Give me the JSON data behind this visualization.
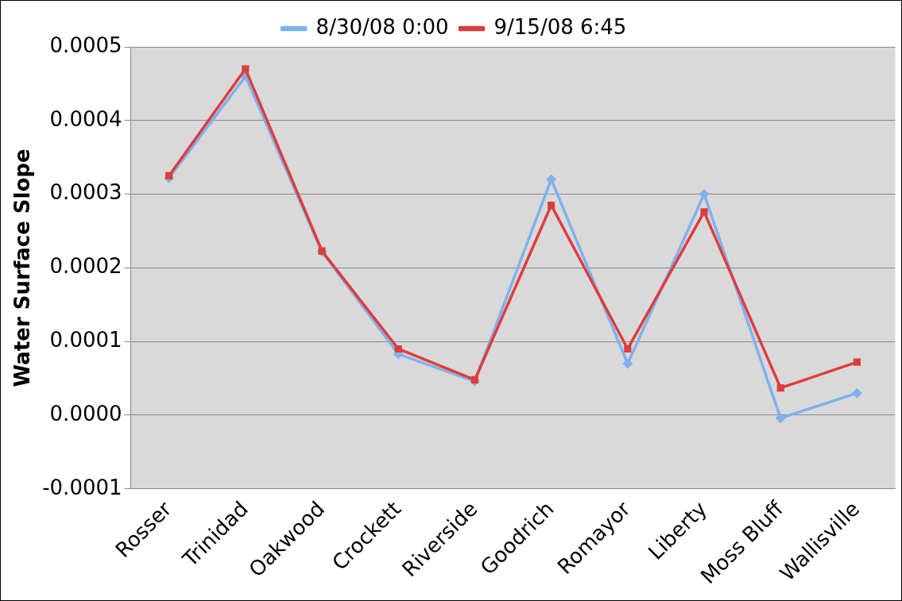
{
  "chart_data": {
    "type": "line",
    "ylabel": "Water Surface Slope",
    "categories": [
      "Rosser",
      "Trinidad",
      "Oakwood",
      "Crockett",
      "Riverside",
      "Goodrich",
      "Romayor",
      "Liberty",
      "Moss Bluff",
      "Wallisville"
    ],
    "series": [
      {
        "name": "8/30/08 0:00",
        "color": "#7fb2ee",
        "marker": "diamond",
        "values": [
          0.000322,
          0.00046,
          0.000222,
          8.3e-05,
          4.6e-05,
          0.00032,
          7e-05,
          0.0003,
          -4e-06,
          3e-05
        ]
      },
      {
        "name": "9/15/08 6:45",
        "color": "#e03c3c",
        "marker": "square",
        "values": [
          0.000325,
          0.00047,
          0.000223,
          9e-05,
          4.8e-05,
          0.000285,
          9e-05,
          0.000276,
          3.7e-05,
          7.2e-05
        ]
      }
    ],
    "ylim": [
      -0.0001,
      0.0005
    ],
    "yticks": [
      {
        "value": -0.0001,
        "label": "-0.0001"
      },
      {
        "value": 0,
        "label": "0.0000"
      },
      {
        "value": 0.0001,
        "label": "0.0001"
      },
      {
        "value": 0.0002,
        "label": "0.0002"
      },
      {
        "value": 0.0003,
        "label": "0.0003"
      },
      {
        "value": 0.0004,
        "label": "0.0004"
      },
      {
        "value": 0.0005,
        "label": "0.0005"
      }
    ],
    "grid": "y",
    "legend": "top",
    "line_style": "solid"
  }
}
